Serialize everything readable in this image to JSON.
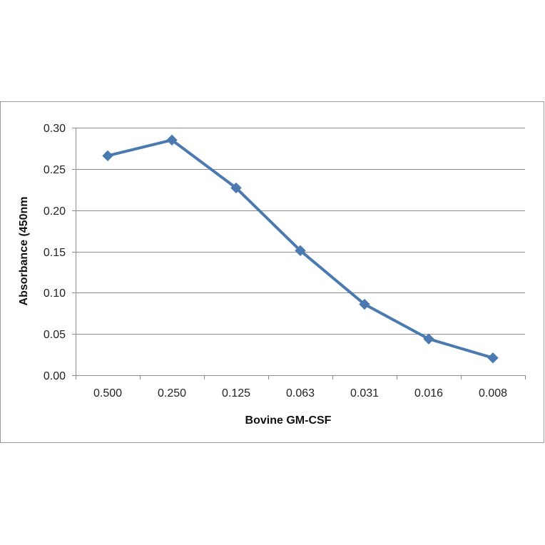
{
  "chart_data": {
    "type": "line",
    "title": "",
    "xlabel": "Bovine GM-CSF",
    "ylabel": "Absorbance  (450nm",
    "categories": [
      "0.500",
      "0.250",
      "0.125",
      "0.063",
      "0.031",
      "0.016",
      "0.008"
    ],
    "series": [
      {
        "values": [
          0.266,
          0.285,
          0.227,
          0.151,
          0.086,
          0.044,
          0.021
        ],
        "color": "#4a7ab0",
        "marker": "diamond"
      }
    ],
    "ylim": [
      0,
      0.3
    ],
    "yticks": [
      "0.00",
      "0.05",
      "0.10",
      "0.15",
      "0.20",
      "0.25",
      "0.30"
    ],
    "grid": true,
    "legend": "none"
  }
}
